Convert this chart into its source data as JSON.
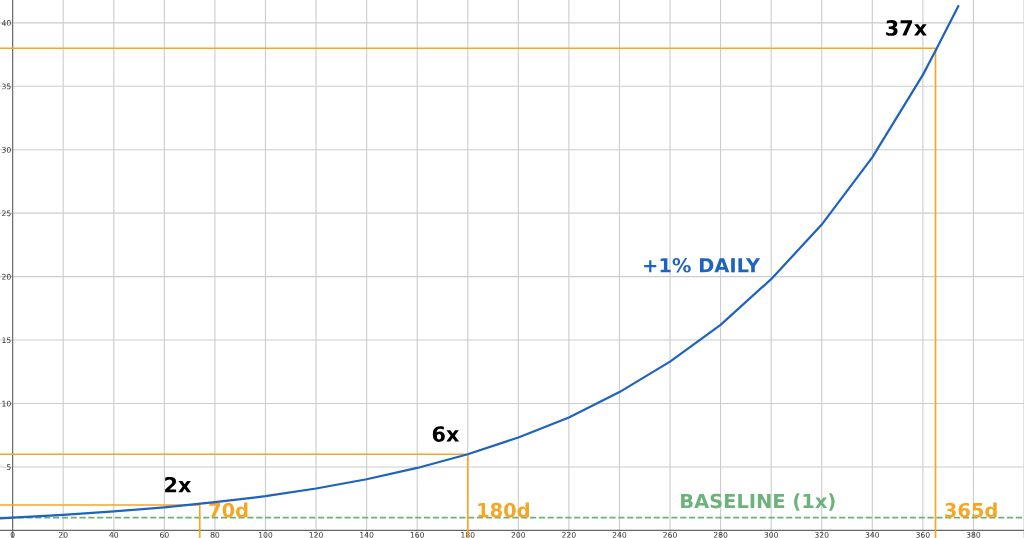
{
  "chart_data": {
    "type": "line",
    "x": [
      -5,
      0,
      20,
      40,
      60,
      80,
      100,
      120,
      140,
      160,
      180,
      200,
      220,
      240,
      260,
      280,
      300,
      320,
      340,
      360,
      365,
      374
    ],
    "series": [
      {
        "name": "+1% DAILY",
        "color": "#1f63c0",
        "values": [
          0.95,
          1,
          1.22,
          1.49,
          1.82,
          2.22,
          2.7,
          3.3,
          4.03,
          4.92,
          6.0,
          7.32,
          8.9,
          10.9,
          13.3,
          16.2,
          19.8,
          24.1,
          29.4,
          35.9,
          37.8,
          41.3
        ]
      },
      {
        "name": "70d",
        "color": "#f5a623",
        "x": [
          -5,
          74,
          74
        ],
        "values": [
          2,
          2,
          -0.6
        ]
      },
      {
        "name": "180d",
        "color": "#f5a623",
        "x": [
          -5,
          180,
          180
        ],
        "values": [
          6,
          6,
          -0.6
        ]
      },
      {
        "name": "365d",
        "color": "#f5a623",
        "x": [
          -5,
          365,
          365
        ],
        "values": [
          38,
          38,
          -0.6
        ]
      }
    ],
    "ref_lines": [
      {
        "axis": "y",
        "value": 1,
        "label": "BASELINE (1x)",
        "color": "#6db27a",
        "line_style": "dashed"
      }
    ],
    "annotations": [
      {
        "text": "2x",
        "x": 74,
        "y": 2
      },
      {
        "text": "6x",
        "x": 180,
        "y": 6
      },
      {
        "text": "37x",
        "x": 365,
        "y": 38
      }
    ],
    "xlim": [
      -5,
      400
    ],
    "ylim": [
      -0.6,
      41.8
    ],
    "xticks": [
      0,
      20,
      40,
      60,
      80,
      100,
      120,
      140,
      160,
      180,
      200,
      220,
      240,
      260,
      280,
      300,
      320,
      340,
      360,
      380,
      {
        "value": 400,
        "label": null
      }
    ],
    "yticks": [
      5,
      10,
      15,
      20,
      25,
      30,
      35,
      40
    ],
    "grid": true,
    "legend": false,
    "marker": "none",
    "line_style": "solid"
  }
}
